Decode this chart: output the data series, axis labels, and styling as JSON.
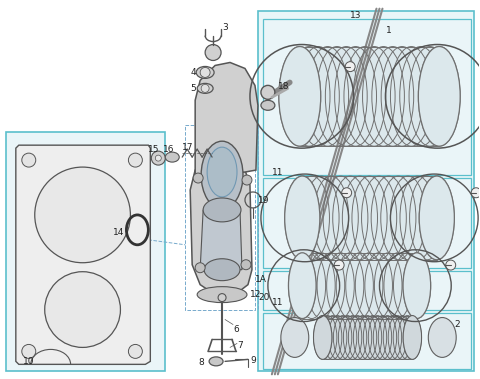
{
  "bg_color": "#ffffff",
  "lc": "#555555",
  "cc": "#5bbfcc",
  "panel_fill": "#e8f6f8",
  "gasket_fill": "#f5f5f5",
  "housing_fill": "#d0d0d0",
  "housing_fill2": "#c0c8d0",
  "bellow_fill": "#e0e8ec",
  "bellow_edge": "#707070",
  "label_color": "#222222"
}
